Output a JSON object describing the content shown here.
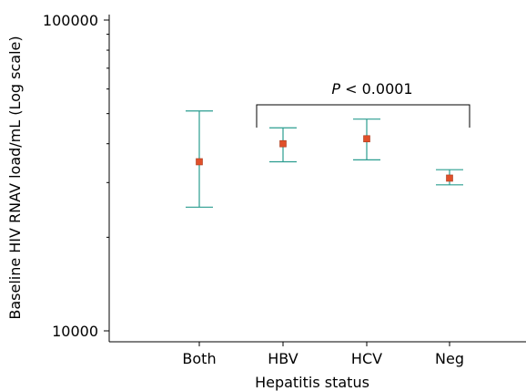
{
  "chart_data": {
    "type": "scatter",
    "title": "",
    "xlabel": "Hepatitis status",
    "ylabel": "Baseline HIV RNAV load/mL (Log scale)",
    "y_scale": "log",
    "ylim": [
      10000,
      100000
    ],
    "y_tick_labels": [
      {
        "value": 10000,
        "label": "10000"
      },
      {
        "value": 100000,
        "label": "100000"
      }
    ],
    "y_minor_ticks": [
      20000,
      30000,
      40000,
      50000,
      60000,
      70000,
      80000,
      90000
    ],
    "categories": [
      "Both",
      "HBV",
      "HCV",
      "Neg"
    ],
    "points": [
      {
        "category": "Both",
        "mean": 35000,
        "lower": 25000,
        "upper": 51000
      },
      {
        "category": "HBV",
        "mean": 40000,
        "lower": 35000,
        "upper": 45000
      },
      {
        "category": "HCV",
        "mean": 41500,
        "lower": 35500,
        "upper": 48000
      },
      {
        "category": "Neg",
        "mean": 31000,
        "lower": 29500,
        "upper": 33000
      }
    ],
    "annotation": {
      "p_symbol": "P",
      "rest": " < 0.0001",
      "from": "HBV",
      "to": "Neg"
    },
    "colors": {
      "marker": "#e0502a",
      "marker_edge": "#a83a1c",
      "errorbar": "#2a9d8f",
      "axis": "#000000"
    },
    "grid": false,
    "legend": "none"
  }
}
